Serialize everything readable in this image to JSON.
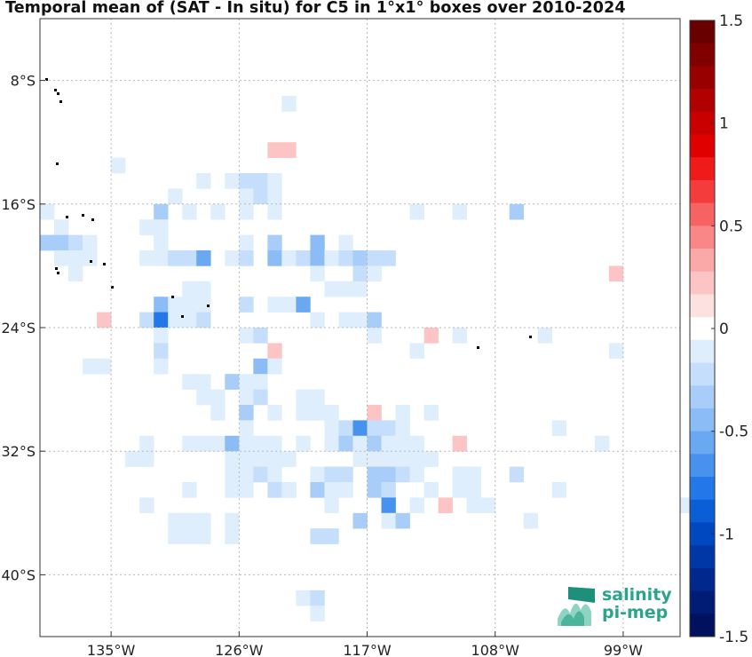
{
  "title": "Temporal mean of (SAT - In situ) for C5 in 1°x1° boxes over 2010-2024",
  "logo": {
    "line1": "salinity",
    "line2": "pi-mep"
  },
  "map": {
    "lon_range": [
      -140,
      -95
    ],
    "lat_range": [
      -44,
      -4
    ],
    "lon_ticks": [
      {
        "value": -135,
        "label": "135°W"
      },
      {
        "value": -126,
        "label": "126°W"
      },
      {
        "value": -117,
        "label": "117°W"
      },
      {
        "value": -108,
        "label": "108°W"
      },
      {
        "value": -99,
        "label": "99°W"
      }
    ],
    "lat_ticks": [
      {
        "value": -8,
        "label": "8°S"
      },
      {
        "value": -16,
        "label": "16°S"
      },
      {
        "value": -24,
        "label": "24°S"
      },
      {
        "value": -32,
        "label": "32°S"
      },
      {
        "value": -40,
        "label": "40°S"
      }
    ],
    "grid": true
  },
  "colorbar": {
    "range": [
      -1.5,
      1.5
    ],
    "tick_labels": [
      {
        "value": 1.5,
        "label": "1.5"
      },
      {
        "value": 1,
        "label": "1"
      },
      {
        "value": 0.5,
        "label": "0.5"
      },
      {
        "value": 0,
        "label": "0"
      },
      {
        "value": -0.5,
        "label": "-0.5"
      },
      {
        "value": -1,
        "label": "-1"
      },
      {
        "value": -1.5,
        "label": "-1.5"
      }
    ]
  },
  "chart_data": {
    "type": "heatmap",
    "title": "Temporal mean of (SAT - In situ) for C5 in 1°x1° boxes over 2010-2024",
    "x_ticks": [
      "135°W",
      "126°W",
      "117°W",
      "108°W",
      "99°W"
    ],
    "y_ticks": [
      "8°S",
      "16°S",
      "24°S",
      "32°S",
      "40°S"
    ],
    "colorbar_range": [
      -1.5,
      1.5
    ],
    "cells_note_units": "lon (deg E), lat (deg N), value",
    "cells": [
      [
        -123,
        -10,
        -0.1
      ],
      [
        -135,
        -14,
        -0.1
      ],
      [
        -124,
        -13,
        0.15
      ],
      [
        -123,
        -13,
        0.2
      ],
      [
        -129,
        -15,
        -0.1
      ],
      [
        -127,
        -15,
        -0.1
      ],
      [
        -126,
        -15,
        -0.2
      ],
      [
        -125,
        -15,
        -0.2
      ],
      [
        -124,
        -15,
        -0.1
      ],
      [
        -131,
        -16,
        -0.1
      ],
      [
        -126,
        -16,
        -0.1
      ],
      [
        -125,
        -16,
        -0.2
      ],
      [
        -124,
        -16,
        -0.1
      ],
      [
        -132,
        -17,
        -0.3
      ],
      [
        -130,
        -17,
        -0.1
      ],
      [
        -128,
        -17,
        -0.1
      ],
      [
        -126,
        -17,
        -0.1
      ],
      [
        -124,
        -17,
        -0.1
      ],
      [
        -140,
        -17,
        -0.1
      ],
      [
        -114,
        -17,
        -0.1
      ],
      [
        -111,
        -17,
        -0.1
      ],
      [
        -107,
        -17,
        -0.3
      ],
      [
        -139,
        -18,
        -0.1
      ],
      [
        -133,
        -18,
        -0.1
      ],
      [
        -132,
        -18,
        -0.1
      ],
      [
        -140,
        -19,
        -0.3
      ],
      [
        -139,
        -19,
        -0.3
      ],
      [
        -138,
        -19,
        -0.2
      ],
      [
        -137,
        -19,
        -0.1
      ],
      [
        -132,
        -19,
        -0.1
      ],
      [
        -126,
        -19,
        -0.1
      ],
      [
        -124,
        -19,
        -0.3
      ],
      [
        -121,
        -19,
        -0.4
      ],
      [
        -119,
        -19,
        -0.1
      ],
      [
        -139,
        -20,
        -0.1
      ],
      [
        -138,
        -20,
        -0.1
      ],
      [
        -137,
        -20,
        -0.1
      ],
      [
        -133,
        -20,
        -0.1
      ],
      [
        -132,
        -20,
        -0.1
      ],
      [
        -131,
        -20,
        -0.2
      ],
      [
        -130,
        -20,
        -0.2
      ],
      [
        -129,
        -20,
        -0.5
      ],
      [
        -127,
        -20,
        -0.1
      ],
      [
        -126,
        -20,
        -0.2
      ],
      [
        -124,
        -20,
        -0.4
      ],
      [
        -123,
        -20,
        -0.1
      ],
      [
        -122,
        -20,
        -0.2
      ],
      [
        -121,
        -20,
        -0.4
      ],
      [
        -120,
        -20,
        -0.1
      ],
      [
        -119,
        -20,
        -0.2
      ],
      [
        -118,
        -20,
        -0.3
      ],
      [
        -117,
        -20,
        -0.2
      ],
      [
        -116,
        -20,
        -0.2
      ],
      [
        -138,
        -21,
        -0.1
      ],
      [
        -121,
        -21,
        -0.1
      ],
      [
        -118,
        -21,
        -0.2
      ],
      [
        -117,
        -21,
        -0.1
      ],
      [
        -100,
        -21,
        0.15
      ],
      [
        -130,
        -22,
        -0.1
      ],
      [
        -129,
        -22,
        -0.1
      ],
      [
        -120,
        -22,
        -0.1
      ],
      [
        -119,
        -22,
        -0.1
      ],
      [
        -118,
        -22,
        -0.1
      ],
      [
        -132,
        -23,
        -0.4
      ],
      [
        -131,
        -23,
        -0.1
      ],
      [
        -130,
        -23,
        -0.1
      ],
      [
        -129,
        -23,
        -0.1
      ],
      [
        -126,
        -23,
        -0.2
      ],
      [
        -124,
        -23,
        -0.1
      ],
      [
        -123,
        -23,
        -0.1
      ],
      [
        -122,
        -23,
        -0.5
      ],
      [
        -136,
        -24,
        0.2
      ],
      [
        -133,
        -24,
        -0.2
      ],
      [
        -132,
        -24,
        -0.7
      ],
      [
        -131,
        -24,
        -0.1
      ],
      [
        -130,
        -24,
        -0.1
      ],
      [
        -129,
        -24,
        -0.2
      ],
      [
        -121,
        -24,
        -0.1
      ],
      [
        -119,
        -24,
        -0.1
      ],
      [
        -118,
        -24,
        -0.1
      ],
      [
        -117,
        -24,
        -0.3
      ],
      [
        -132,
        -25,
        -0.1
      ],
      [
        -126,
        -25,
        -0.1
      ],
      [
        -125,
        -25,
        -0.2
      ],
      [
        -117,
        -25,
        -0.1
      ],
      [
        -113,
        -25,
        0.2
      ],
      [
        -111,
        -25,
        -0.1
      ],
      [
        -105,
        -25,
        -0.1
      ],
      [
        -132,
        -26,
        -0.2
      ],
      [
        -124,
        -26,
        0.15
      ],
      [
        -114,
        -26,
        -0.1
      ],
      [
        -100,
        -26,
        -0.1
      ],
      [
        -137,
        -27,
        -0.1
      ],
      [
        -136,
        -27,
        -0.1
      ],
      [
        -132,
        -27,
        -0.1
      ],
      [
        -125,
        -27,
        -0.4
      ],
      [
        -124,
        -27,
        -0.1
      ],
      [
        -130,
        -28,
        -0.1
      ],
      [
        -129,
        -28,
        -0.1
      ],
      [
        -127,
        -28,
        -0.3
      ],
      [
        -126,
        -28,
        -0.1
      ],
      [
        -125,
        -28,
        -0.1
      ],
      [
        -129,
        -29,
        -0.1
      ],
      [
        -128,
        -29,
        -0.1
      ],
      [
        -126,
        -29,
        -0.1
      ],
      [
        -125,
        -29,
        -0.2
      ],
      [
        -122,
        -29,
        -0.1
      ],
      [
        -121,
        -29,
        -0.1
      ],
      [
        -128,
        -30,
        -0.1
      ],
      [
        -126,
        -30,
        -0.3
      ],
      [
        -124,
        -30,
        -0.1
      ],
      [
        -122,
        -30,
        -0.1
      ],
      [
        -121,
        -30,
        -0.1
      ],
      [
        -120,
        -30,
        -0.1
      ],
      [
        -117,
        -30,
        0.15
      ],
      [
        -115,
        -30,
        -0.1
      ],
      [
        -113,
        -30,
        -0.1
      ],
      [
        -126,
        -31,
        -0.1
      ],
      [
        -120,
        -31,
        -0.1
      ],
      [
        -119,
        -31,
        -0.2
      ],
      [
        -118,
        -31,
        -0.6
      ],
      [
        -117,
        -31,
        -0.2
      ],
      [
        -116,
        -31,
        -0.2
      ],
      [
        -115,
        -31,
        -0.1
      ],
      [
        -104,
        -31,
        -0.1
      ],
      [
        -133,
        -32,
        -0.1
      ],
      [
        -130,
        -32,
        -0.1
      ],
      [
        -129,
        -32,
        -0.1
      ],
      [
        -128,
        -32,
        -0.1
      ],
      [
        -127,
        -32,
        -0.4
      ],
      [
        -126,
        -32,
        -0.1
      ],
      [
        -125,
        -32,
        -0.1
      ],
      [
        -124,
        -32,
        -0.1
      ],
      [
        -122,
        -32,
        -0.1
      ],
      [
        -120,
        -32,
        -0.1
      ],
      [
        -119,
        -32,
        -0.3
      ],
      [
        -118,
        -32,
        -0.1
      ],
      [
        -117,
        -32,
        -0.3
      ],
      [
        -116,
        -32,
        -0.1
      ],
      [
        -115,
        -32,
        -0.1
      ],
      [
        -114,
        -32,
        -0.1
      ],
      [
        -111,
        -32,
        0.2
      ],
      [
        -101,
        -32,
        -0.1
      ],
      [
        -134,
        -33,
        -0.1
      ],
      [
        -133,
        -33,
        -0.1
      ],
      [
        -127,
        -33,
        -0.1
      ],
      [
        -126,
        -33,
        -0.1
      ],
      [
        -125,
        -33,
        -0.1
      ],
      [
        -124,
        -33,
        -0.1
      ],
      [
        -123,
        -33,
        -0.1
      ],
      [
        -118,
        -33,
        -0.1
      ],
      [
        -117,
        -33,
        -0.1
      ],
      [
        -116,
        -33,
        -0.1
      ],
      [
        -115,
        -33,
        -0.1
      ],
      [
        -114,
        -33,
        -0.1
      ],
      [
        -113,
        -33,
        -0.1
      ],
      [
        -127,
        -34,
        -0.1
      ],
      [
        -126,
        -34,
        -0.1
      ],
      [
        -125,
        -34,
        -0.2
      ],
      [
        -124,
        -34,
        -0.1
      ],
      [
        -121,
        -34,
        -0.1
      ],
      [
        -120,
        -34,
        -0.2
      ],
      [
        -119,
        -34,
        -0.2
      ],
      [
        -117,
        -34,
        -0.3
      ],
      [
        -116,
        -34,
        -0.3
      ],
      [
        -115,
        -34,
        -0.2
      ],
      [
        -114,
        -34,
        -0.1
      ],
      [
        -111,
        -34,
        -0.1
      ],
      [
        -110,
        -34,
        -0.1
      ],
      [
        -107,
        -34,
        -0.2
      ],
      [
        -127,
        -35,
        -0.1
      ],
      [
        -126,
        -35,
        -0.1
      ],
      [
        -124,
        -35,
        -0.2
      ],
      [
        -123,
        -35,
        -0.1
      ],
      [
        -121,
        -35,
        -0.3
      ],
      [
        -120,
        -35,
        -0.1
      ],
      [
        -119,
        -35,
        -0.1
      ],
      [
        -117,
        -35,
        -0.3
      ],
      [
        -116,
        -35,
        -0.2
      ],
      [
        -113,
        -35,
        -0.1
      ],
      [
        -111,
        -35,
        -0.1
      ],
      [
        -110,
        -35,
        -0.1
      ],
      [
        -104,
        -35,
        -0.1
      ],
      [
        -130,
        -35,
        -0.1
      ],
      [
        -123,
        -35,
        -0.1
      ],
      [
        -116,
        -36,
        -0.6
      ],
      [
        -112,
        -36,
        0.15
      ],
      [
        -110,
        -36,
        -0.1
      ],
      [
        -109,
        -36,
        -0.1
      ],
      [
        -133,
        -36,
        -0.1
      ],
      [
        -120,
        -36,
        -0.1
      ],
      [
        -114,
        -36,
        -0.1
      ],
      [
        -95,
        -36,
        -0.1
      ],
      [
        -131,
        -37,
        -0.1
      ],
      [
        -130,
        -37,
        -0.1
      ],
      [
        -129,
        -37,
        -0.1
      ],
      [
        -127,
        -37,
        -0.1
      ],
      [
        -118,
        -37,
        -0.3
      ],
      [
        -116,
        -37,
        -0.1
      ],
      [
        -115,
        -37,
        -0.3
      ],
      [
        -106,
        -37,
        -0.1
      ],
      [
        -131,
        -38,
        -0.1
      ],
      [
        -130,
        -38,
        -0.1
      ],
      [
        -129,
        -38,
        -0.1
      ],
      [
        -127,
        -38,
        -0.1
      ],
      [
        -121,
        -38,
        -0.2
      ],
      [
        -120,
        -38,
        -0.2
      ],
      [
        -122,
        -42,
        -0.1
      ],
      [
        -121,
        -42,
        -0.2
      ],
      [
        -121,
        -43,
        -0.1
      ]
    ]
  }
}
